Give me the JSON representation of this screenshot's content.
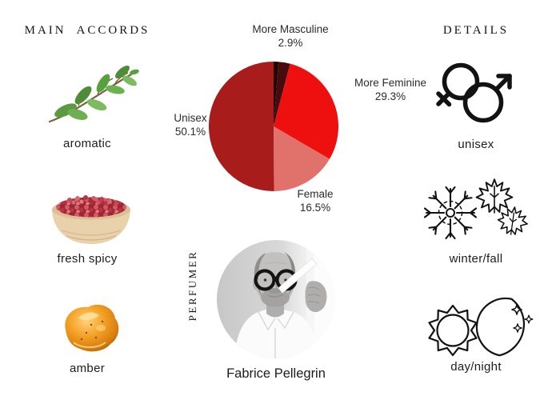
{
  "page": {
    "background": "#ffffff"
  },
  "left_column": {
    "header": "MAIN ACCORDS",
    "items": [
      {
        "label": "aromatic",
        "icon": "herb-sprig"
      },
      {
        "label": "fresh spicy",
        "icon": "pink-peppercorn-bowl"
      },
      {
        "label": "amber",
        "icon": "amber-resin"
      }
    ]
  },
  "right_column": {
    "header": "DETAILS",
    "items": [
      {
        "label": "unisex",
        "icon": "gender-symbols"
      },
      {
        "label": "winter/fall",
        "icon": "snowflake-and-maple-leaves"
      },
      {
        "label": "day/night",
        "icon": "sun-and-moon"
      }
    ]
  },
  "perfumer": {
    "section_label": "PERFUMER",
    "name": "Fabrice Pellegrin",
    "photo": "black-and-white portrait, man with round glasses smelling a blotter strip"
  },
  "chart_data": {
    "type": "pie",
    "title": "",
    "start_angle_deg": -90,
    "direction": "clockwise",
    "legend_position": "outside-labels",
    "series": [
      {
        "label": "",
        "pct_label": "",
        "value": 1.2,
        "color": "#1e0404"
      },
      {
        "label": "More Masculine",
        "pct_label": "2.9%",
        "value": 2.9,
        "color": "#470b0b"
      },
      {
        "label": "More Feminine",
        "pct_label": "29.3%",
        "value": 29.3,
        "color": "#ee0f0f"
      },
      {
        "label": "Female",
        "pct_label": "16.5%",
        "value": 16.5,
        "color": "#e0716b"
      },
      {
        "label": "Unisex",
        "pct_label": "50.1%",
        "value": 50.1,
        "color": "#a81c1c"
      }
    ]
  }
}
